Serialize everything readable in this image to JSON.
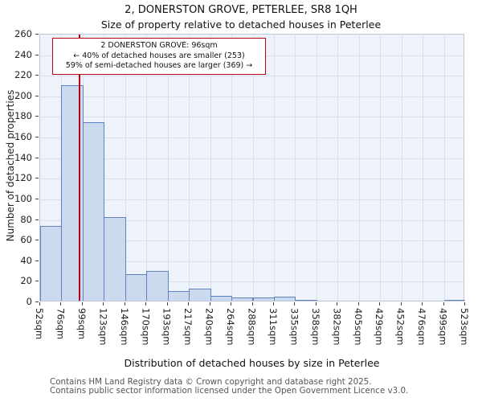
{
  "chart_data": {
    "type": "bar",
    "title": "2, DONERSTON GROVE, PETERLEE, SR8 1QH",
    "subtitle": "Size of property relative to detached houses in Peterlee",
    "xlabel": "Distribution of detached houses by size in Peterlee",
    "ylabel": "Number of detached properties",
    "ylim": [
      0,
      260
    ],
    "ytick_step": 20,
    "grid": true,
    "bin_edges_sqm": [
      52,
      76,
      99,
      123,
      146,
      170,
      193,
      217,
      240,
      264,
      288,
      311,
      335,
      358,
      382,
      405,
      429,
      452,
      476,
      499,
      523
    ],
    "tick_labels": [
      "52sqm",
      "76sqm",
      "99sqm",
      "123sqm",
      "146sqm",
      "170sqm",
      "193sqm",
      "217sqm",
      "240sqm",
      "264sqm",
      "288sqm",
      "311sqm",
      "335sqm",
      "358sqm",
      "382sqm",
      "405sqm",
      "429sqm",
      "452sqm",
      "476sqm",
      "499sqm",
      "523sqm"
    ],
    "values": [
      73,
      209,
      173,
      81,
      26,
      29,
      9,
      12,
      5,
      3,
      3,
      4,
      1,
      0,
      0,
      0,
      0,
      0,
      0,
      1
    ],
    "marker": {
      "value_sqm": 96,
      "color": "#bb0011"
    },
    "colors": {
      "bar_fill": "#ccdaef",
      "bar_edge": "#5e83bd",
      "plot_bg": "#eef2fa",
      "grid": "#d9dfec"
    }
  },
  "annotation": {
    "line1": "2 DONERSTON GROVE: 96sqm",
    "line2": "← 40% of detached houses are smaller (253)",
    "line3": "59% of semi-detached houses are larger (369) →"
  },
  "footer": {
    "line1": "Contains HM Land Registry data © Crown copyright and database right 2025.",
    "line2": "Contains public sector information licensed under the Open Government Licence v3.0."
  }
}
